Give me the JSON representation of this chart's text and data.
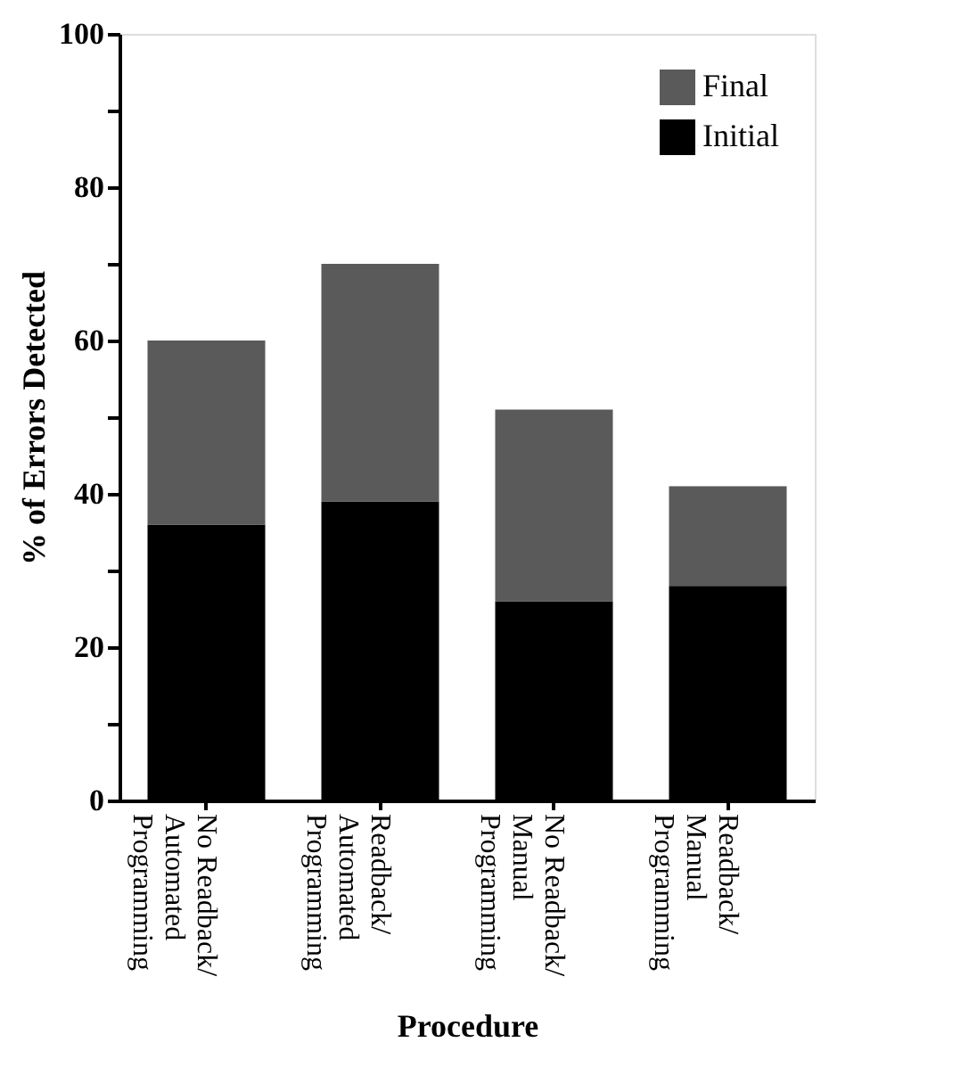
{
  "chart_data": {
    "type": "bar",
    "stacked": true,
    "xlabel": "Procedure",
    "ylabel": "% of Errors Detected",
    "categories": [
      "No Readback/\nAutomated\nProgramming",
      "Readback/\nAutomated\nProgramming",
      "No Readback/\nManual\nProgramming",
      "Readback/\nManual\nProgramming"
    ],
    "series": [
      {
        "name": "Initial",
        "color": "#000000",
        "values": [
          36,
          39,
          26,
          28
        ]
      },
      {
        "name": "Final",
        "color": "#5a5a5a",
        "values": [
          24,
          31,
          25,
          13
        ]
      }
    ],
    "ylim": [
      0,
      100
    ],
    "yticks": [
      0,
      {
        "value": 10,
        "label": null
      },
      20,
      {
        "value": 30,
        "label": null
      },
      40,
      {
        "value": 50,
        "label": null
      },
      60,
      {
        "value": 70,
        "label": null
      },
      80,
      {
        "value": 90,
        "label": null
      },
      100
    ],
    "legend": "top right",
    "grid": false
  }
}
